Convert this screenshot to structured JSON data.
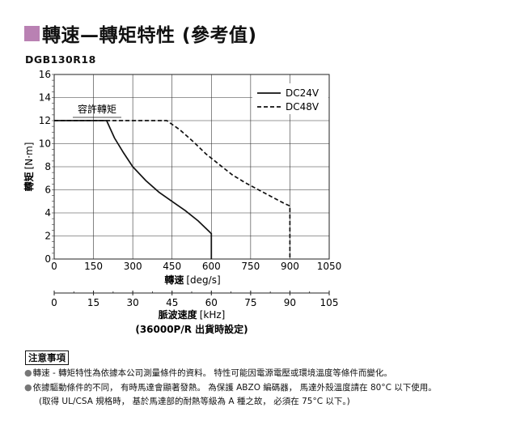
{
  "header": {
    "title": "轉速—轉矩特性 (參考值)",
    "model": "DGB130R18"
  },
  "chart_data": {
    "type": "line",
    "x": [
      0,
      150,
      300,
      450,
      600,
      750,
      900,
      1050
    ],
    "x_ticks": [
      "0",
      "150",
      "300",
      "450",
      "600",
      "750",
      "900",
      "1050"
    ],
    "y_ticks": [
      "0",
      "2",
      "4",
      "6",
      "8",
      "10",
      "12",
      "14",
      "16"
    ],
    "xlim": [
      0,
      1050
    ],
    "ylim": [
      0,
      16
    ],
    "xlabel": "轉速",
    "xlabel_unit": "[deg/s]",
    "ylabel": "轉矩",
    "ylabel_unit": "[N·m]",
    "grid": true,
    "legend": "top-right",
    "annotation": "容許轉矩",
    "series": [
      {
        "name": "DC24V",
        "style": "solid",
        "points": [
          [
            0,
            12
          ],
          [
            200,
            12
          ],
          [
            230,
            10.5
          ],
          [
            265,
            9.2
          ],
          [
            300,
            8.0
          ],
          [
            350,
            6.8
          ],
          [
            400,
            5.8
          ],
          [
            450,
            5.0
          ],
          [
            500,
            4.2
          ],
          [
            550,
            3.3
          ],
          [
            600,
            2.2
          ],
          [
            600,
            0
          ]
        ]
      },
      {
        "name": "DC48V",
        "style": "dashed",
        "points": [
          [
            0,
            12
          ],
          [
            430,
            12
          ],
          [
            480,
            11.2
          ],
          [
            530,
            10.2
          ],
          [
            580,
            9.1
          ],
          [
            630,
            8.2
          ],
          [
            680,
            7.3
          ],
          [
            730,
            6.6
          ],
          [
            780,
            6.0
          ],
          [
            830,
            5.4
          ],
          [
            880,
            4.8
          ],
          [
            900,
            4.6
          ],
          [
            900,
            0
          ]
        ]
      }
    ],
    "secondary_axis": {
      "label": "脈波速度",
      "unit": "[kHz]",
      "ticks": [
        "0",
        "15",
        "30",
        "45",
        "60",
        "75",
        "90",
        "105"
      ],
      "note": "(36000P/R 出貨時設定)"
    }
  },
  "notes": {
    "title": "注意事項",
    "lines": [
      "轉速 - 轉矩特性為依據本公司測量條件的資料。 特性可能因電源電壓或環境溫度等條件而變化。",
      "依據驅動條件的不同， 有時馬達會顯著發熱。 為保護 ABZO 編碼器， 馬達外殼溫度請在 80°C 以下使用。",
      "(取得 UL/CSA 規格時， 基於馬達部的耐熱等級為 A 種之故， 必須在 75°C 以下。)"
    ]
  }
}
